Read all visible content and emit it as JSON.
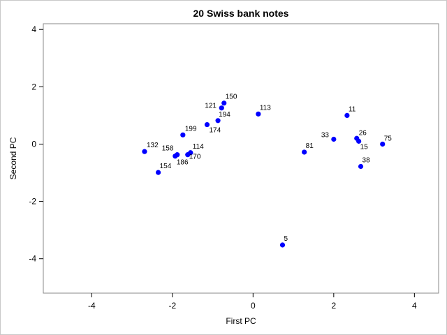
{
  "chart_data": {
    "type": "scatter",
    "title": "20 Swiss bank notes",
    "xlabel": "First PC",
    "ylabel": "Second PC",
    "xlim": [
      -5.2,
      4.6
    ],
    "ylim": [
      -5.2,
      4.2
    ],
    "xticks": [
      -4,
      -2,
      0,
      2,
      4
    ],
    "yticks": [
      -4,
      -2,
      0,
      2,
      4
    ],
    "grid": false,
    "marker_color": "#0000ff",
    "points": [
      {
        "label": "150",
        "x": -0.72,
        "y": 1.43
      },
      {
        "label": "121",
        "x": -0.78,
        "y": 1.26
      },
      {
        "label": "194",
        "x": -0.87,
        "y": 0.82
      },
      {
        "label": "174",
        "x": -1.14,
        "y": 0.68
      },
      {
        "label": "113",
        "x": 0.13,
        "y": 1.05
      },
      {
        "label": "199",
        "x": -1.74,
        "y": 0.32
      },
      {
        "label": "132",
        "x": -2.69,
        "y": -0.26
      },
      {
        "label": "158",
        "x": -1.88,
        "y": -0.37
      },
      {
        "label": "186",
        "x": -1.93,
        "y": -0.42
      },
      {
        "label": "114",
        "x": -1.55,
        "y": -0.3
      },
      {
        "label": "170",
        "x": -1.62,
        "y": -0.37
      },
      {
        "label": "154",
        "x": -2.35,
        "y": -0.99
      },
      {
        "label": "11",
        "x": 2.33,
        "y": 1.0
      },
      {
        "label": "33",
        "x": 2.0,
        "y": 0.17
      },
      {
        "label": "26",
        "x": 2.57,
        "y": 0.2
      },
      {
        "label": "15",
        "x": 2.62,
        "y": 0.1
      },
      {
        "label": "75",
        "x": 3.21,
        "y": 0.0
      },
      {
        "label": "81",
        "x": 1.27,
        "y": -0.28
      },
      {
        "label": "38",
        "x": 2.67,
        "y": -0.78
      },
      {
        "label": "5",
        "x": 0.73,
        "y": -3.52
      }
    ]
  }
}
